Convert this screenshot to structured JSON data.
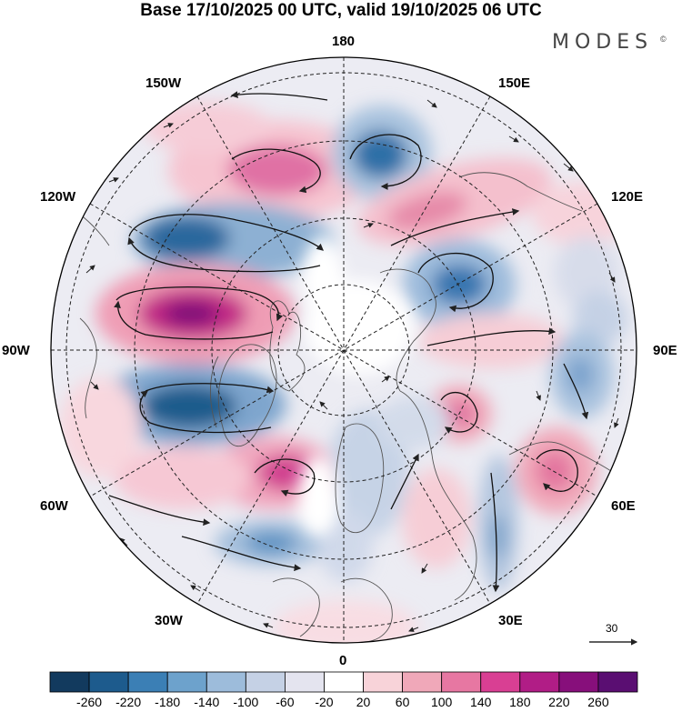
{
  "title": "Base 17/10/2025 00 UTC, valid 19/10/2025 06 UTC",
  "brand": {
    "name": "MODES",
    "mark": "©"
  },
  "longitude_labels": {
    "top": "180",
    "bottom": "0",
    "left": "90W",
    "right": "90E",
    "nw1": "150W",
    "nw2": "120W",
    "sw1": "60W",
    "sw2": "30W",
    "ne1": "150E",
    "ne2": "120E",
    "se1": "60E",
    "se2": "30E"
  },
  "reference_vector": {
    "label": "30"
  },
  "colorbar": {
    "ticks": [
      "-260",
      "-220",
      "-180",
      "-140",
      "-100",
      "-60",
      "-20",
      "20",
      "60",
      "100",
      "140",
      "180",
      "220",
      "260"
    ],
    "colors": [
      "#123a5e",
      "#1d5b8d",
      "#3b7fb5",
      "#6da2cc",
      "#9dbcdb",
      "#c5d1e5",
      "#e4e4ef",
      "#ffffff",
      "#f8d3d9",
      "#f0a8b9",
      "#e777a2",
      "#d93f93",
      "#b11d86",
      "#870f7b",
      "#5a0e72"
    ]
  }
}
